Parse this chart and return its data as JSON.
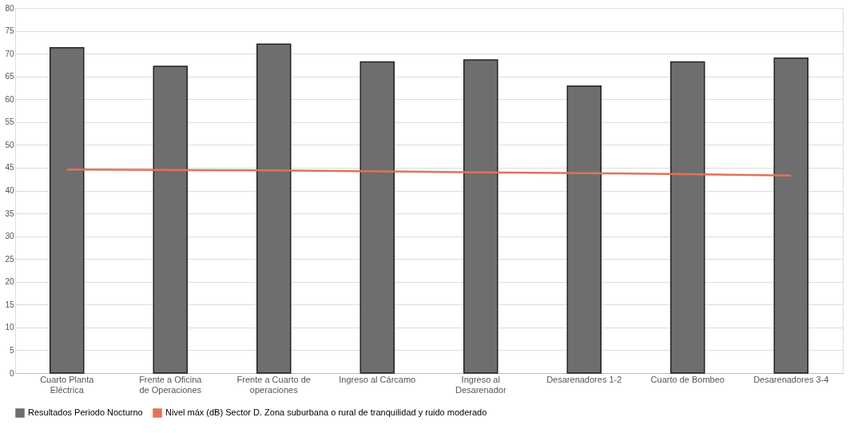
{
  "chart_data": {
    "type": "bar",
    "categories": [
      "Cuarto Planta Eléctrica",
      "Frente a Oficina de Operaciones",
      "Frente a Cuarto de operaciones",
      "Ingreso al Cárcamo",
      "Ingreso al Desarenador",
      "Desarenadores 1-2",
      "Cuarto de Bombeo",
      "Desarenadores 3-4"
    ],
    "series": [
      {
        "name": "Resultados Periodo Nocturno",
        "color": "#6e6e6e",
        "values": [
          71.3,
          67.2,
          72.1,
          68.2,
          68.6,
          62.9,
          68.2,
          69.0
        ]
      },
      {
        "name": "Nivel máx (dB) Sector D. Zona suburbana o rural de tranquilidad y ruido moderado",
        "type": "line",
        "color": "#e0735a",
        "values": [
          44.6,
          44.5,
          44.4,
          44.2,
          44.0,
          43.8,
          43.6,
          43.3
        ]
      }
    ],
    "ylim": [
      0,
      80
    ],
    "yticks": [
      0,
      5,
      10,
      15,
      20,
      25,
      30,
      35,
      40,
      45,
      50,
      55,
      60,
      65,
      70,
      75,
      80
    ],
    "grid": "y",
    "legend": "bottom"
  }
}
